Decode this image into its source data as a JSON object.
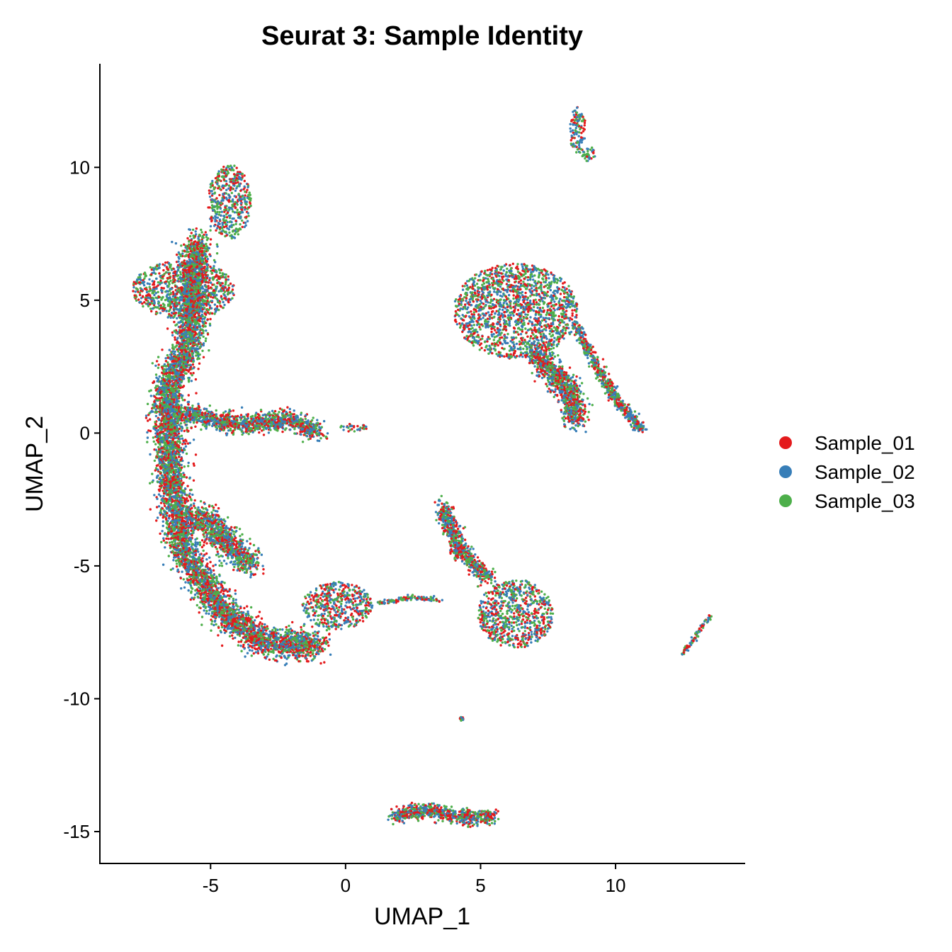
{
  "chart_data": {
    "type": "scatter",
    "title": "Seurat 3: Sample Identity",
    "xlabel": "UMAP_1",
    "ylabel": "UMAP_2",
    "xlim": [
      -9.1,
      14.8
    ],
    "ylim": [
      -16.2,
      13.9
    ],
    "x_ticks": [
      -5,
      0,
      5,
      10
    ],
    "y_ticks": [
      -15,
      -10,
      -5,
      0,
      5,
      10
    ],
    "grid": false,
    "legend_position": "right",
    "series": [
      {
        "name": "Sample_01",
        "color": "#E41A1C"
      },
      {
        "name": "Sample_02",
        "color": "#377EB8"
      },
      {
        "name": "Sample_03",
        "color": "#4DAF4A"
      }
    ],
    "clusters": [
      {
        "shape": "ellipse",
        "cx": -6.0,
        "cy": 5.4,
        "rx": 1.9,
        "ry": 1.1
      },
      {
        "shape": "ellipse",
        "cx": -4.3,
        "cy": 8.7,
        "rx": 0.8,
        "ry": 1.4
      },
      {
        "shape": "path",
        "points": [
          [
            -5.5,
            7.3
          ],
          [
            -5.8,
            3.2
          ],
          [
            -6.6,
            1.8
          ],
          [
            -6.5,
            -1.5
          ],
          [
            -6.0,
            -4.5
          ],
          [
            -4.5,
            -6.8
          ],
          [
            -3.0,
            -7.9
          ],
          [
            -1.0,
            -8.0
          ]
        ],
        "width": 0.55
      },
      {
        "shape": "path",
        "points": [
          [
            -6.2,
            0.8
          ],
          [
            -4.0,
            0.3
          ],
          [
            -2.0,
            0.5
          ],
          [
            -1.0,
            0.0
          ]
        ],
        "width": 0.35
      },
      {
        "shape": "ellipse",
        "cx": 0.3,
        "cy": 0.2,
        "rx": 0.5,
        "ry": 0.15
      },
      {
        "shape": "path",
        "points": [
          [
            -5.5,
            -3.0
          ],
          [
            -4.0,
            -4.5
          ],
          [
            -3.5,
            -5.0
          ]
        ],
        "width": 0.5
      },
      {
        "shape": "ellipse",
        "cx": -0.3,
        "cy": -6.5,
        "rx": 1.3,
        "ry": 0.9
      },
      {
        "shape": "path",
        "points": [
          [
            1.2,
            -6.4
          ],
          [
            2.5,
            -6.2
          ],
          [
            3.5,
            -6.3
          ]
        ],
        "width": 0.08
      },
      {
        "shape": "ellipse",
        "cx": 6.3,
        "cy": 4.6,
        "rx": 2.3,
        "ry": 1.8
      },
      {
        "shape": "path",
        "points": [
          [
            7.0,
            3.0
          ],
          [
            8.4,
            1.5
          ],
          [
            8.5,
            0.4
          ]
        ],
        "width": 0.45
      },
      {
        "shape": "path",
        "points": [
          [
            8.5,
            4.0
          ],
          [
            10.0,
            1.3
          ],
          [
            11.0,
            0.1
          ]
        ],
        "width": 0.2
      },
      {
        "shape": "path",
        "points": [
          [
            3.6,
            -2.7
          ],
          [
            4.2,
            -4.4
          ],
          [
            5.3,
            -5.5
          ]
        ],
        "width": 0.3
      },
      {
        "shape": "ellipse",
        "cx": 6.3,
        "cy": -6.8,
        "rx": 1.4,
        "ry": 1.3
      },
      {
        "shape": "ellipse",
        "cx": 8.6,
        "cy": 11.4,
        "rx": 0.3,
        "ry": 0.9
      },
      {
        "shape": "ellipse",
        "cx": 9.0,
        "cy": 10.5,
        "rx": 0.25,
        "ry": 0.3
      },
      {
        "shape": "path",
        "points": [
          [
            12.5,
            -8.3
          ],
          [
            13.0,
            -7.6
          ],
          [
            13.5,
            -6.9
          ]
        ],
        "width": 0.08
      },
      {
        "shape": "ellipse",
        "cx": 4.3,
        "cy": -10.75,
        "rx": 0.06,
        "ry": 0.08
      },
      {
        "shape": "path",
        "points": [
          [
            1.8,
            -14.4
          ],
          [
            3.0,
            -14.2
          ],
          [
            4.5,
            -14.5
          ],
          [
            5.5,
            -14.4
          ]
        ],
        "width": 0.28
      }
    ]
  }
}
